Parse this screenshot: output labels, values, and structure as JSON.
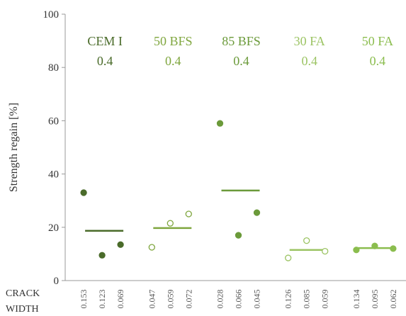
{
  "chart_data": {
    "type": "scatter",
    "ylabel": "Strength regain [%]",
    "ylim": [
      0,
      100
    ],
    "yticks": [
      0,
      20,
      40,
      60,
      80,
      100
    ],
    "xlabel_lines": [
      "CRACK",
      "WIDTH"
    ],
    "groups": [
      {
        "name_line1": "CEM I",
        "name_line2": "0.4",
        "color": "#4a6b2a",
        "marker": "filled",
        "crack_widths": [
          "0.153",
          "0.123",
          "0.069"
        ],
        "values": [
          33,
          9.5,
          13.5
        ],
        "mean": 18.7
      },
      {
        "name_line1": "50 BFS",
        "name_line2": "0.4",
        "color": "#7fa63e",
        "marker": "open",
        "crack_widths": [
          "0.047",
          "0.059",
          "0.072"
        ],
        "values": [
          12.5,
          21.5,
          25
        ],
        "mean": 19.7
      },
      {
        "name_line1": "85 BFS",
        "name_line2": "0.4",
        "color": "#6b9a3a",
        "marker": "filled",
        "crack_widths": [
          "0.028",
          "0.066",
          "0.045"
        ],
        "values": [
          59,
          17,
          25.5
        ],
        "mean": 33.8
      },
      {
        "name_line1": "30 FA",
        "name_line2": "0.4",
        "color": "#9cc464",
        "marker": "open",
        "crack_widths": [
          "0.126",
          "0.085",
          "0.059"
        ],
        "values": [
          8.5,
          15,
          11
        ],
        "mean": 11.5
      },
      {
        "name_line1": "50 FA",
        "name_line2": "0.4",
        "color": "#8bbd4e",
        "marker": "filled",
        "crack_widths": [
          "0.134",
          "0.095",
          "0.062"
        ],
        "values": [
          11.5,
          13,
          12
        ],
        "mean": 12.2
      }
    ],
    "grid": false,
    "legend": "none"
  }
}
